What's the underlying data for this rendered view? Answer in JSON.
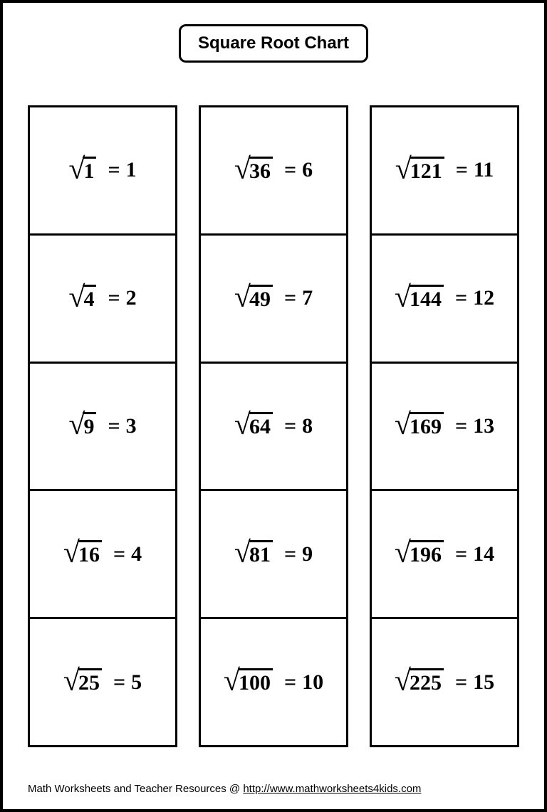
{
  "title": "Square Root Chart",
  "layout": {
    "page_border_color": "#000000",
    "page_border_width": 4,
    "title_border_radius": 10,
    "title_fontsize": 24,
    "cell_fontsize": 30,
    "cell_border_width": 3,
    "columns_count": 3,
    "rows_per_column": 5,
    "background_color": "#ffffff",
    "text_color": "#000000"
  },
  "columns": [
    {
      "cells": [
        {
          "radicand": "1",
          "result": "1"
        },
        {
          "radicand": "4",
          "result": "2"
        },
        {
          "radicand": "9",
          "result": "3"
        },
        {
          "radicand": "16",
          "result": "4"
        },
        {
          "radicand": "25",
          "result": "5"
        }
      ]
    },
    {
      "cells": [
        {
          "radicand": "36",
          "result": "6"
        },
        {
          "radicand": "49",
          "result": "7"
        },
        {
          "radicand": "64",
          "result": "8"
        },
        {
          "radicand": "81",
          "result": "9"
        },
        {
          "radicand": "100",
          "result": "10"
        }
      ]
    },
    {
      "cells": [
        {
          "radicand": "121",
          "result": "11"
        },
        {
          "radicand": "144",
          "result": "12"
        },
        {
          "radicand": "169",
          "result": "13"
        },
        {
          "radicand": "196",
          "result": "14"
        },
        {
          "radicand": "225",
          "result": "15"
        }
      ]
    }
  ],
  "footer": {
    "prefix": "Math Worksheets and Teacher Resources @ ",
    "link_text": "http://www.mathworksheets4kids.com"
  }
}
